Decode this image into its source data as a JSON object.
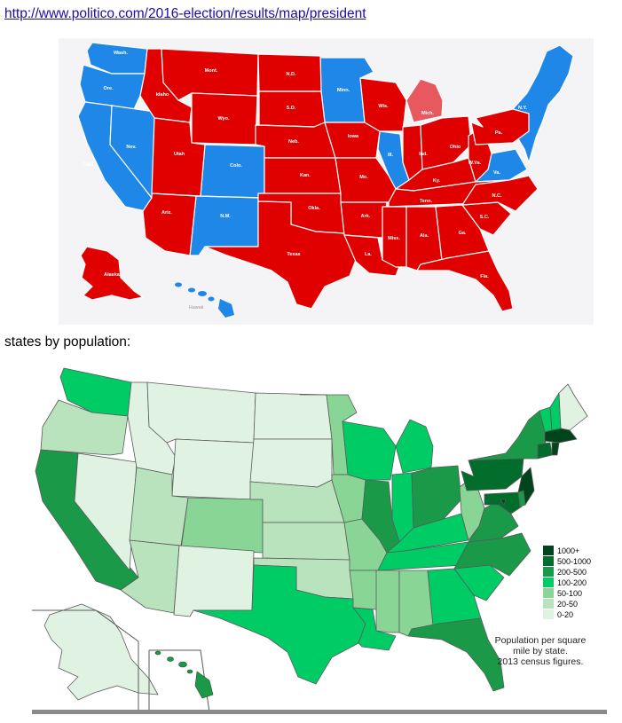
{
  "link": {
    "text": "http://www.politico.com/2016-election/results/map/president"
  },
  "election_map": {
    "colors": {
      "republican": "#e10000",
      "democrat": "#1f87e8",
      "michigan": "#e8585f",
      "border": "#ffffff",
      "water": "#f4f4f6"
    },
    "labels": {
      "wash": "Wash.",
      "ore": "Ore.",
      "calif": "Calif.",
      "nev": "Nev.",
      "idaho": "Idaho",
      "mont": "Mont.",
      "wyo": "Wyo.",
      "utah": "Utah",
      "colo": "Colo.",
      "ariz": "Ariz.",
      "nm": "N.M.",
      "nd": "N.D.",
      "sd": "S.D.",
      "neb": "Neb.",
      "kan": "Kan.",
      "okla": "Okla.",
      "texas": "Texas",
      "minn": "Minn.",
      "iowa": "Iowa",
      "mo": "Mo.",
      "ark": "Ark.",
      "la": "La.",
      "wis": "Wis.",
      "ill": "Ill.",
      "mich": "Mich.",
      "ind": "Ind.",
      "ohio": "Ohio",
      "ky": "Ky.",
      "tenn": "Tenn.",
      "miss": "Miss.",
      "ala": "Ala.",
      "ga": "Ga.",
      "fla": "Fla.",
      "sc": "S.C.",
      "nc": "N.C.",
      "va": "Va.",
      "wva": "W.Va.",
      "pa": "Pa.",
      "ny": "N.Y.",
      "alaska": "Alaska",
      "hawaii": "Hawaii"
    }
  },
  "heading": {
    "text": "states by population:"
  },
  "density_map": {
    "colors": {
      "c1000": "#00441b",
      "c500": "#006d2c",
      "c200": "#1a9a48",
      "c100": "#00cc66",
      "c50": "#88d595",
      "c20": "#b8e3bd",
      "c0": "#e0f2e2",
      "stroke": "#5a5a5a"
    },
    "legend": [
      "1000+",
      "500-1000",
      "200-500",
      "100-200",
      "50-100",
      "20-50",
      "0-20"
    ],
    "caption": [
      "Population per square",
      "mile by state.",
      "2013 census figures."
    ]
  }
}
